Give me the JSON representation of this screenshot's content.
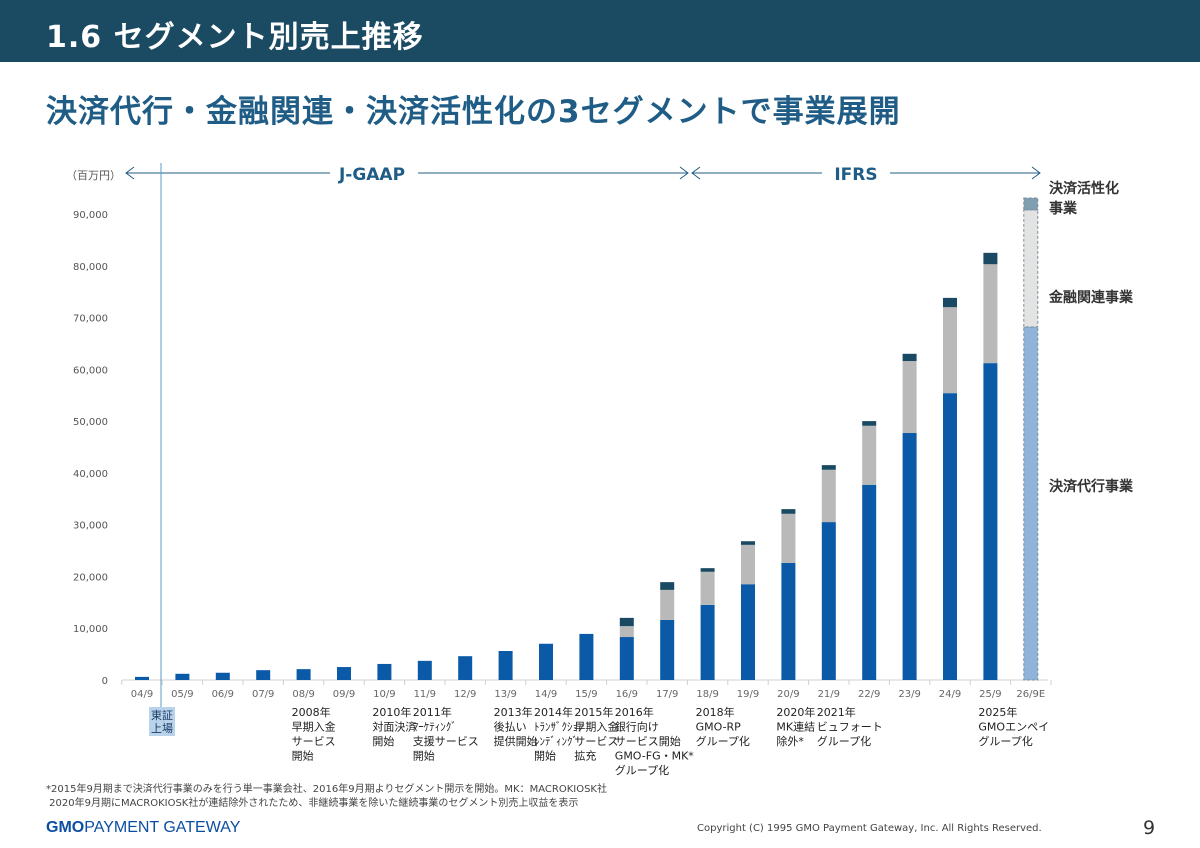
{
  "header": {
    "title": "1.6  セグメント別売上推移"
  },
  "subtitle": "決済代行・金融関連・決済活性化の3セグメントで事業展開",
  "chart_data": {
    "type": "bar",
    "stacked": true,
    "unit_label": "（百万円）",
    "ylim": [
      0,
      90000
    ],
    "yticks": [
      0,
      10000,
      20000,
      30000,
      40000,
      50000,
      60000,
      70000,
      80000,
      90000
    ],
    "ytick_labels": [
      "0",
      "10,000",
      "20,000",
      "30,000",
      "40,000",
      "50,000",
      "60,000",
      "70,000",
      "80,000",
      "90,000"
    ],
    "grid": false,
    "categories": [
      "04/9",
      "05/9",
      "06/9",
      "07/9",
      "08/9",
      "09/9",
      "10/9",
      "11/9",
      "12/9",
      "13/9",
      "14/9",
      "15/9",
      "16/9",
      "17/9",
      "18/9",
      "19/9",
      "20/9",
      "21/9",
      "22/9",
      "23/9",
      "24/9",
      "25/9",
      "26/9E"
    ],
    "forecast_category": "26/9E",
    "series": [
      {
        "name": "決済代行事業",
        "color": "#0b5aa8",
        "forecast_color": "#8fb3d9",
        "values": [
          600,
          1200,
          1400,
          1900,
          2100,
          2500,
          3100,
          3700,
          4600,
          5600,
          7000,
          8900,
          8300,
          11600,
          14500,
          18500,
          22600,
          30500,
          37700,
          47700,
          55400,
          61200,
          68200
        ]
      },
      {
        "name": "金融関連事業",
        "color": "#b9b9b9",
        "forecast_color": "#e3e3e3",
        "values": [
          0,
          0,
          0,
          0,
          0,
          0,
          0,
          0,
          0,
          0,
          0,
          0,
          2100,
          5800,
          6400,
          7600,
          9500,
          10100,
          11400,
          13900,
          16600,
          19100,
          22600
        ]
      },
      {
        "name": "決済活性化事業",
        "color": "#1a4a63",
        "forecast_color": "#7f9fb0",
        "values": [
          0,
          0,
          0,
          0,
          0,
          0,
          0,
          0,
          0,
          0,
          0,
          0,
          1600,
          1500,
          700,
          700,
          900,
          900,
          900,
          1400,
          1800,
          2200,
          2300
        ]
      }
    ],
    "legend_placement": "right",
    "periods": [
      {
        "label": "J-GAAP",
        "from": "04/9",
        "to": "17/9"
      },
      {
        "label": "IFRS",
        "from": "18/9",
        "to": "26/9E"
      }
    ],
    "listing_marker": {
      "category": "04/9",
      "label_lines": [
        "東証",
        "上場"
      ]
    },
    "annotations": [
      {
        "category": "08/9",
        "lines": [
          "2008年",
          "早期入金",
          "サービス",
          "開始"
        ]
      },
      {
        "category": "10/9",
        "lines": [
          "2010年",
          "対面決済",
          "開始"
        ]
      },
      {
        "category": "11/9",
        "lines": [
          "2011年",
          "ﾏｰｹﾃｨﾝｸﾞ",
          "支援サービス",
          "開始"
        ]
      },
      {
        "category": "13/9",
        "lines": [
          "2013年",
          "後払い",
          "提供開始"
        ]
      },
      {
        "category": "14/9",
        "lines": [
          "2014年",
          "ﾄﾗﾝｻﾞｸｼｮﾝ",
          "ﾚﾝﾃﾞｨﾝｸﾞ",
          "開始"
        ]
      },
      {
        "category": "15/9",
        "lines": [
          "",
          "早期入金",
          "サービス",
          "拡充"
        ],
        "year": "2015年"
      },
      {
        "category": "16/9",
        "lines": [
          "2016年",
          "銀行向け",
          "サービス開始",
          "GMO-FG・MK*",
          "グループ化"
        ]
      },
      {
        "category": "18/9",
        "lines": [
          "2018年",
          "GMO-RP",
          "グループ化"
        ]
      },
      {
        "category": "20/9",
        "lines": [
          "2020年",
          "MK連結",
          "除外*"
        ]
      },
      {
        "category": "21/9",
        "lines": [
          "2021年",
          "ビュフォート",
          "グループ化"
        ]
      },
      {
        "category": "25/9",
        "lines": [
          "2025年",
          "GMOエンペイ",
          "グループ化"
        ]
      }
    ]
  },
  "footnote": {
    "line1": "*2015年9月期まで決済代行事業のみを行う単一事業会社、2016年9月期よりセグメント開示を開始。MK：MACROKIOSK社",
    "line2": " 2020年9月期にMACROKIOSK社が連結除外されたため、非継続事業を除いた継続事業のセグメント別売上収益を表示"
  },
  "footer": {
    "logo_bold": "GMO",
    "logo_rest": "PAYMENT GATEWAY",
    "copyright": "Copyright (C) 1995 GMO Payment Gateway, Inc. All Rights Reserved.",
    "page_number": "9"
  }
}
